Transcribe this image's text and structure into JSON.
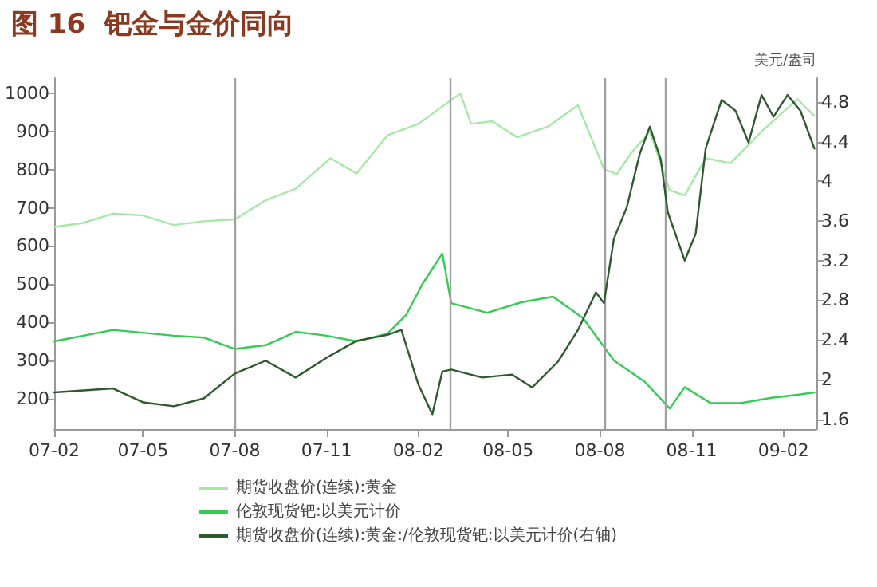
{
  "chart_data": {
    "type": "line",
    "title": "图 16  钯金与金价同向",
    "y2label": "美元/盎司",
    "legend": "bottom",
    "grid": false,
    "marker": "none",
    "line_style": "solid",
    "xlim": [
      "2007-02-01",
      "2009-03-06"
    ],
    "xticks": [
      {
        "value": "2007-02-01",
        "label": "07-02"
      },
      {
        "value": "2007-05-01",
        "label": "07-05"
      },
      {
        "value": "2007-08-01",
        "label": "07-08"
      },
      {
        "value": "2007-11-01",
        "label": "07-11"
      },
      {
        "value": "2008-02-01",
        "label": "08-02"
      },
      {
        "value": "2008-05-01",
        "label": "08-05"
      },
      {
        "value": "2008-08-01",
        "label": "08-08"
      },
      {
        "value": "2008-11-01",
        "label": "08-11"
      },
      {
        "value": "2009-02-01",
        "label": "09-02"
      }
    ],
    "ylim": [
      120,
      1040
    ],
    "yticks": [
      200,
      300,
      400,
      500,
      600,
      700,
      800,
      900,
      1000
    ],
    "y2lim": [
      1.5,
      5.04
    ],
    "y2ticks": [
      1.6,
      2.0,
      2.4,
      2.8,
      3.2,
      3.6,
      4.0,
      4.4,
      4.8
    ],
    "ref_lines": [
      {
        "axis": "x",
        "value": "2007-08-01",
        "color": "#a0a0a0"
      },
      {
        "axis": "x",
        "value": "2008-03-03",
        "color": "#a0a0a0"
      },
      {
        "axis": "x",
        "value": "2008-08-06",
        "color": "#a0a0a0"
      },
      {
        "axis": "x",
        "value": "2008-10-06",
        "color": "#a0a0a0"
      }
    ],
    "series": [
      {
        "name": "期货收盘价(连续):黄金",
        "color": "#a6e8a6",
        "x": [
          "2007-02-01",
          "2007-03-01",
          "2007-04-01",
          "2007-05-01",
          "2007-06-01",
          "2007-07-01",
          "2007-08-01",
          "2007-09-01",
          "2007-10-01",
          "2007-11-05",
          "2007-12-01",
          "2008-01-01",
          "2008-02-01",
          "2008-03-14",
          "2008-03-25",
          "2008-04-15",
          "2008-05-10",
          "2008-06-10",
          "2008-07-10",
          "2008-08-05",
          "2008-08-18",
          "2008-09-01",
          "2008-09-20",
          "2008-10-10",
          "2008-10-25",
          "2008-11-15",
          "2008-12-10",
          "2009-01-10",
          "2009-02-15",
          "2009-03-04"
        ],
        "values": [
          650,
          660,
          685,
          680,
          655,
          665,
          670,
          720,
          750,
          830,
          790,
          890,
          920,
          1000,
          920,
          927,
          885,
          913,
          969,
          802,
          788,
          843,
          900,
          746,
          733,
          830,
          817,
          900,
          985,
          941
        ]
      },
      {
        "name": "伦敦现货钯:以美元计价",
        "color": "#33cc55",
        "x": [
          "2007-02-01",
          "2007-04-01",
          "2007-06-01",
          "2007-07-01",
          "2007-08-01",
          "2007-09-01",
          "2007-10-01",
          "2007-11-01",
          "2007-12-01",
          "2008-01-01",
          "2008-01-20",
          "2008-02-05",
          "2008-02-25",
          "2008-03-05",
          "2008-04-10",
          "2008-05-15",
          "2008-06-15",
          "2008-07-15",
          "2008-08-15",
          "2008-09-15",
          "2008-10-10",
          "2008-10-25",
          "2008-11-20",
          "2008-12-20",
          "2009-01-20",
          "2009-02-15",
          "2009-03-04"
        ],
        "values": [
          350,
          380,
          365,
          360,
          330,
          340,
          375,
          365,
          350,
          370,
          420,
          500,
          580,
          450,
          425,
          453,
          467,
          411,
          300,
          244,
          174,
          230,
          188,
          188,
          202,
          210,
          216
        ]
      },
      {
        "name": "期货收盘价(连续):黄金:/伦敦现货钯:以美元计价(右轴)",
        "color": "#2f5a2f",
        "axis": "y2",
        "x": [
          "2007-02-01",
          "2007-04-01",
          "2007-05-01",
          "2007-06-01",
          "2007-07-01",
          "2007-08-01",
          "2007-09-01",
          "2007-10-01",
          "2007-11-01",
          "2007-12-01",
          "2008-01-01",
          "2008-01-15",
          "2008-02-01",
          "2008-02-15",
          "2008-02-25",
          "2008-03-05",
          "2008-04-05",
          "2008-05-05",
          "2008-05-25",
          "2008-06-20",
          "2008-07-10",
          "2008-07-28",
          "2008-08-05",
          "2008-08-15",
          "2008-08-28",
          "2008-09-10",
          "2008-09-20",
          "2008-10-01",
          "2008-10-08",
          "2008-10-25",
          "2008-11-05",
          "2008-11-15",
          "2008-12-01",
          "2008-12-15",
          "2008-12-28",
          "2009-01-10",
          "2009-01-22",
          "2009-02-05",
          "2009-02-18",
          "2009-03-04"
        ],
        "values": [
          1.87,
          1.91,
          1.77,
          1.73,
          1.81,
          2.06,
          2.19,
          2.02,
          2.22,
          2.39,
          2.45,
          2.5,
          1.95,
          1.65,
          2.08,
          2.1,
          2.02,
          2.05,
          1.92,
          2.18,
          2.5,
          2.88,
          2.77,
          3.42,
          3.74,
          4.28,
          4.55,
          4.22,
          3.69,
          3.2,
          3.47,
          4.33,
          4.82,
          4.71,
          4.39,
          4.87,
          4.65,
          4.87,
          4.71,
          4.33
        ]
      }
    ]
  }
}
